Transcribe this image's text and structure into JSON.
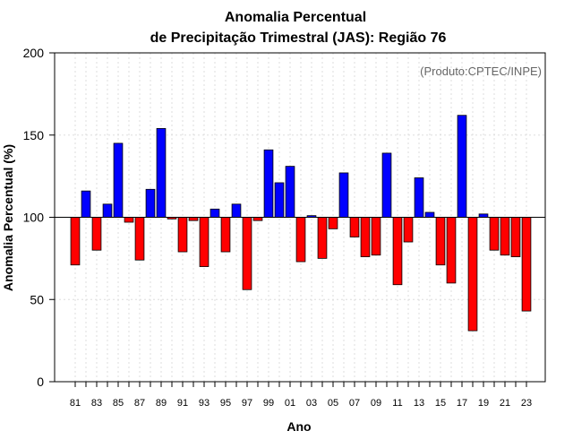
{
  "chart_data": {
    "type": "bar",
    "title_line1": "Anomalia Percentual",
    "title_line2": "de Precipitação Trimestral (JAS): Região 76",
    "xlabel": "Ano",
    "ylabel": "Anomalia Percentual (%)",
    "credit": "(Produto:CPTEC/INPE)",
    "baseline": 100,
    "ylim": [
      0,
      200
    ],
    "yticks": [
      0,
      50,
      100,
      150,
      200
    ],
    "x_tick_labels": [
      "81",
      "83",
      "85",
      "87",
      "89",
      "91",
      "93",
      "95",
      "97",
      "99",
      "01",
      "03",
      "05",
      "07",
      "09",
      "11",
      "13",
      "15",
      "17",
      "19",
      "21",
      "23"
    ],
    "categories": [
      "1981",
      "1982",
      "1983",
      "1984",
      "1985",
      "1986",
      "1987",
      "1988",
      "1989",
      "1990",
      "1991",
      "1992",
      "1993",
      "1994",
      "1995",
      "1996",
      "1997",
      "1998",
      "1999",
      "2000",
      "2001",
      "2002",
      "2003",
      "2004",
      "2005",
      "2006",
      "2007",
      "2008",
      "2009",
      "2010",
      "2011",
      "2012",
      "2013",
      "2014",
      "2015",
      "2016",
      "2017",
      "2018",
      "2019",
      "2020",
      "2021",
      "2022",
      "2023"
    ],
    "values": [
      71,
      116,
      80,
      108,
      145,
      97,
      74,
      117,
      154,
      99,
      79,
      98,
      70,
      105,
      79,
      108,
      56,
      98,
      141,
      121,
      131,
      73,
      101,
      75,
      93,
      127,
      88,
      76,
      77,
      139,
      59,
      85,
      124,
      103,
      71,
      60,
      162,
      31,
      102,
      80,
      77,
      76,
      43
    ],
    "colors": {
      "above": "#0000ff",
      "below": "#ff0000",
      "axis": "#000000",
      "credit": "#666666"
    }
  }
}
